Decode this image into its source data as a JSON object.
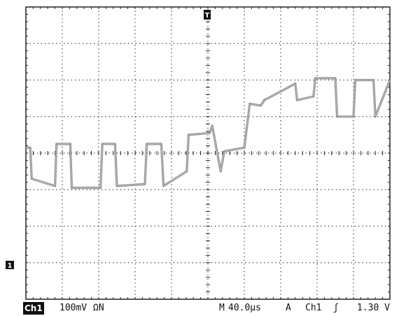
{
  "status_bar": {
    "channel_badge": "Ch1",
    "volts_per_div": "100mV",
    "coupling": "ΩN",
    "timebase_prefix": "M",
    "timebase": "40.0µs",
    "trigger_mode": "A",
    "trigger_source": "Ch1",
    "trigger_slope": "ʃ",
    "trigger_level": "1.30 V"
  },
  "markers": {
    "trigger_position": "T",
    "channel_ground": "1"
  },
  "colors": {
    "grid": "#222222",
    "trace": "#8a8a8a",
    "background": "#ffffff",
    "badge": "#111111"
  },
  "chart_data": {
    "type": "line",
    "title": "",
    "grid": true,
    "divisions_x": 10,
    "divisions_y": 8,
    "xlim": [
      0,
      10
    ],
    "ylim": [
      -4,
      4
    ],
    "series": [
      {
        "x": [
          0,
          0.12,
          0.16,
          0.8,
          0.84,
          1.22,
          1.26,
          2.05,
          2.1,
          2.45,
          2.5,
          3.27,
          3.32,
          3.72,
          3.78,
          4.42,
          4.47,
          5.05,
          5.12,
          5.35,
          5.45,
          6.0,
          6.15,
          6.45,
          6.55,
          7.4,
          7.45,
          7.9,
          7.95,
          8.5,
          8.55,
          9.0,
          9.05,
          9.55,
          9.6,
          10
        ],
        "y": [
          0.15,
          0.15,
          -0.7,
          -0.9,
          0.25,
          0.25,
          -0.95,
          -0.95,
          0.25,
          0.25,
          -0.9,
          -0.85,
          0.25,
          0.25,
          -0.9,
          -0.5,
          0.5,
          0.55,
          0.75,
          -0.5,
          0.05,
          0.15,
          1.35,
          1.3,
          1.45,
          1.9,
          1.45,
          1.55,
          2.05,
          2.05,
          1.0,
          1.0,
          2.0,
          2.0,
          1.0,
          2.0
        ]
      }
    ]
  }
}
